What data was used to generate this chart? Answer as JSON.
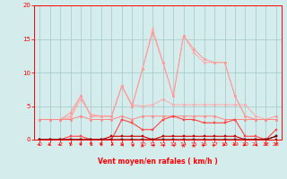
{
  "x": [
    0,
    1,
    2,
    3,
    4,
    5,
    6,
    7,
    8,
    9,
    10,
    11,
    12,
    13,
    14,
    15,
    16,
    17,
    18,
    19,
    20,
    21,
    22,
    23
  ],
  "series": [
    {
      "color": "#ffaaaa",
      "linewidth": 0.7,
      "marker": "o",
      "markersize": 1.8,
      "values": [
        3.0,
        3.0,
        3.0,
        3.2,
        6.0,
        3.8,
        3.5,
        3.5,
        8.0,
        5.2,
        5.0,
        5.2,
        6.0,
        5.2,
        5.2,
        5.2,
        5.2,
        5.2,
        5.2,
        5.2,
        5.2,
        3.5,
        3.0,
        3.0
      ]
    },
    {
      "color": "#ffaaaa",
      "linewidth": 0.7,
      "marker": "o",
      "markersize": 1.8,
      "values": [
        3.0,
        3.0,
        3.0,
        3.5,
        6.5,
        3.5,
        3.5,
        3.5,
        8.0,
        5.0,
        10.5,
        16.5,
        11.5,
        6.5,
        15.5,
        13.0,
        11.5,
        11.5,
        11.5,
        6.5,
        3.5,
        3.0,
        3.0,
        3.0
      ]
    },
    {
      "color": "#ff9999",
      "linewidth": 0.7,
      "marker": "o",
      "markersize": 1.8,
      "values": [
        3.0,
        3.0,
        3.0,
        4.0,
        6.5,
        3.5,
        3.5,
        3.5,
        8.0,
        5.0,
        10.5,
        16.0,
        11.5,
        6.5,
        15.5,
        13.5,
        12.0,
        11.5,
        11.5,
        6.5,
        3.5,
        3.0,
        3.0,
        3.5
      ]
    },
    {
      "color": "#ff8888",
      "linewidth": 0.7,
      "marker": "o",
      "markersize": 1.8,
      "values": [
        3.0,
        3.0,
        3.0,
        3.0,
        3.5,
        3.0,
        3.0,
        3.0,
        3.5,
        3.0,
        3.5,
        3.5,
        3.5,
        3.5,
        3.5,
        3.5,
        3.5,
        3.5,
        3.0,
        3.0,
        3.0,
        3.0,
        3.0,
        3.0
      ]
    },
    {
      "color": "#ff4444",
      "linewidth": 0.8,
      "marker": "s",
      "markersize": 2.0,
      "values": [
        0.0,
        0.0,
        0.0,
        0.5,
        0.5,
        0.0,
        0.0,
        0.0,
        3.0,
        2.5,
        1.5,
        1.5,
        3.0,
        3.5,
        3.0,
        3.0,
        2.5,
        2.5,
        2.5,
        3.0,
        0.5,
        0.5,
        0.0,
        1.5
      ]
    },
    {
      "color": "#cc0000",
      "linewidth": 0.8,
      "marker": "s",
      "markersize": 2.0,
      "values": [
        0.0,
        0.0,
        0.0,
        0.0,
        0.0,
        0.0,
        0.0,
        0.5,
        0.5,
        0.5,
        0.5,
        0.0,
        0.5,
        0.5,
        0.5,
        0.5,
        0.5,
        0.5,
        0.5,
        0.5,
        0.0,
        0.0,
        0.0,
        0.5
      ]
    },
    {
      "color": "#990000",
      "linewidth": 0.8,
      "marker": "s",
      "markersize": 2.0,
      "values": [
        0.0,
        0.0,
        0.0,
        0.0,
        0.0,
        0.0,
        0.0,
        0.0,
        0.0,
        0.0,
        0.0,
        0.0,
        0.0,
        0.0,
        0.0,
        0.0,
        0.0,
        0.0,
        0.0,
        0.0,
        0.0,
        0.0,
        0.0,
        0.0
      ]
    },
    {
      "color": "#660000",
      "linewidth": 0.8,
      "marker": "s",
      "markersize": 2.0,
      "values": [
        0.0,
        0.0,
        0.0,
        0.0,
        0.0,
        0.0,
        0.0,
        0.0,
        0.0,
        0.0,
        0.0,
        0.0,
        0.0,
        0.0,
        0.0,
        0.0,
        0.0,
        0.0,
        0.0,
        0.0,
        0.0,
        0.0,
        0.0,
        0.5
      ]
    }
  ],
  "wind_dirs_deg": [
    45,
    45,
    45,
    0,
    0,
    0,
    0,
    315,
    270,
    225,
    180,
    225,
    225,
    225,
    180,
    180,
    135,
    135,
    90,
    45,
    90,
    270,
    0,
    0
  ],
  "xlabel": "Vent moyen/en rafales ( km/h )",
  "xlim": [
    -0.5,
    23.5
  ],
  "ylim": [
    0,
    20
  ],
  "yticks": [
    0,
    5,
    10,
    15,
    20
  ],
  "xticks": [
    0,
    1,
    2,
    3,
    4,
    5,
    6,
    7,
    8,
    9,
    10,
    11,
    12,
    13,
    14,
    15,
    16,
    17,
    18,
    19,
    20,
    21,
    22,
    23
  ],
  "bg_color": "#d4ecec",
  "grid_color": "#aacece",
  "axis_color": "#ff0000",
  "tick_color": "#ff0000",
  "label_color": "#ff0000"
}
